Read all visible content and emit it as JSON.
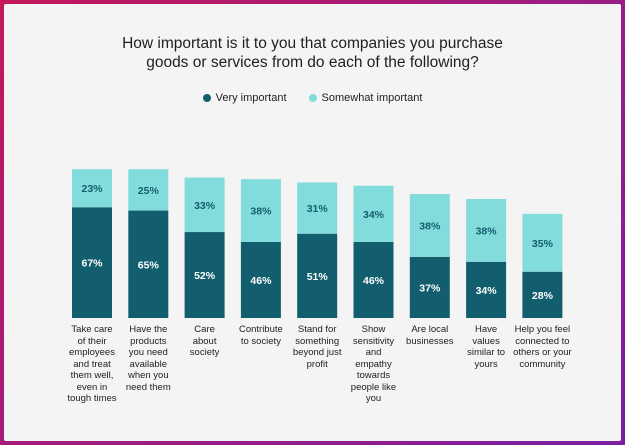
{
  "chart_data": {
    "type": "bar",
    "stacked": true,
    "title_lines": [
      "How important is it to you that companies you purchase",
      "goods or services from do each of the following?"
    ],
    "categories": [
      "Take care of their employees and treat them well, even in tough times",
      "Have the products you need available when you need them",
      "Care about society",
      "Contribute to society",
      "Stand for something beyond just profit",
      "Show sensitivity and empathy towards people like you",
      "Are local businesses",
      "Have values similar to yours",
      "Help you feel connected to others or your community"
    ],
    "category_lines": [
      [
        "Take care",
        "of their",
        "employees",
        "and treat",
        "them well,",
        "even in",
        "tough times"
      ],
      [
        "Have the",
        "products",
        "you need",
        "available",
        "when you",
        "need them"
      ],
      [
        "Care",
        "about",
        "society"
      ],
      [
        "Contribute",
        "to society"
      ],
      [
        "Stand for",
        "something",
        "beyond just",
        "profit"
      ],
      [
        "Show",
        "sensitivity",
        "and",
        "empathy",
        "towards",
        "people like",
        "you"
      ],
      [
        "Are local",
        "businesses"
      ],
      [
        "Have",
        "values",
        "similar to",
        "yours"
      ],
      [
        "Help you feel",
        "connected to",
        "others or your",
        "community"
      ]
    ],
    "series": [
      {
        "name": "Very important",
        "color": "#135e6e",
        "values": [
          67,
          65,
          52,
          46,
          51,
          46,
          37,
          34,
          28
        ]
      },
      {
        "name": "Somewhat important",
        "color": "#83dcdc",
        "values": [
          23,
          25,
          33,
          38,
          31,
          34,
          38,
          38,
          35
        ]
      }
    ],
    "value_suffix": "%",
    "ylim": [
      0,
      100
    ],
    "grid": false,
    "legend_position": "top-center"
  }
}
